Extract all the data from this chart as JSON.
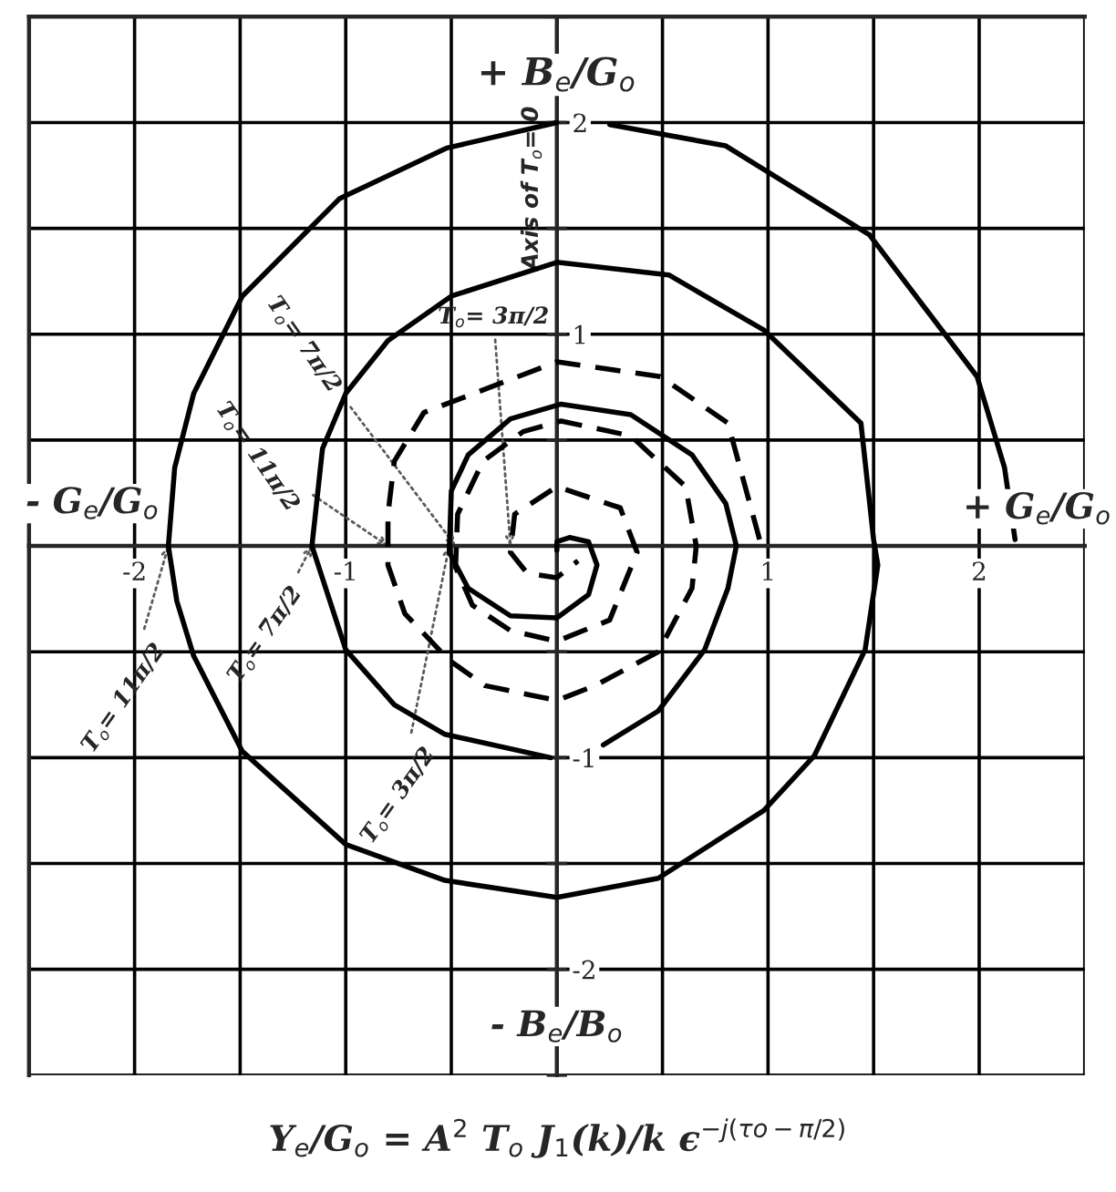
{
  "chart_data": {
    "type": "line",
    "xlim": [
      -2.5,
      2.5
    ],
    "ylim": [
      -2.5,
      2.5
    ],
    "xticks": [
      {
        "value": -2.5,
        "label": null
      },
      -2,
      {
        "value": -1.5,
        "label": null
      },
      -1,
      {
        "value": -0.5,
        "label": null
      },
      {
        "value": 0,
        "label": null
      },
      {
        "value": 0.5,
        "label": null
      },
      1,
      {
        "value": 1.5,
        "label": null
      },
      2,
      {
        "value": 2.5,
        "label": null
      }
    ],
    "yticks": [
      {
        "value": -2.5,
        "label": null
      },
      -2,
      {
        "value": -1.5,
        "label": null
      },
      -1,
      {
        "value": -0.5,
        "label": null
      },
      {
        "value": 0,
        "label": null
      },
      {
        "value": 0.5,
        "label": null
      },
      1,
      {
        "value": 1.5,
        "label": null
      },
      2,
      {
        "value": 2.5,
        "label": null
      }
    ],
    "grid": true,
    "marker": "none",
    "xlabel": "+ G$_{e}$/G$_{o}$",
    "ylabel": "+ B$_{e}$/G$_{o}$",
    "series": [
      {
        "color": "#000000",
        "line_style": "solid",
        "x": [
          2.17,
          2.12,
          1.99,
          1.48,
          0.8,
          0.25,
          null,
          0.0,
          -0.52,
          -1.03,
          -1.49,
          -1.72,
          -1.81,
          -1.84,
          -1.8,
          -1.72,
          -1.49,
          -1.0,
          -0.53,
          0.0,
          0.48,
          0.98,
          1.22,
          1.46,
          1.52,
          1.5,
          1.44,
          0.98,
          0.53,
          0.0,
          -0.5,
          -0.8,
          -1.0,
          -1.11,
          -1.16,
          -1.0,
          -0.77,
          -0.53,
          -0.03,
          null,
          0.22,
          0.48,
          0.7,
          0.81,
          0.85,
          0.8,
          0.64,
          0.35,
          0.02,
          -0.22,
          -0.42,
          -0.5,
          -0.51,
          -0.42,
          -0.22,
          0.0,
          0.15,
          0.19,
          0.15,
          0.06,
          0.0,
          0.0
        ],
        "values": [
          0.03,
          0.37,
          0.8,
          1.47,
          1.89,
          1.99,
          null,
          2.0,
          1.88,
          1.64,
          1.18,
          0.72,
          0.37,
          0.0,
          -0.26,
          -0.52,
          -0.97,
          -1.41,
          -1.58,
          -1.66,
          -1.57,
          -1.25,
          -0.99,
          -0.49,
          -0.09,
          0.03,
          0.58,
          1.02,
          1.28,
          1.34,
          1.18,
          0.97,
          0.72,
          0.46,
          0.0,
          -0.49,
          -0.75,
          -0.89,
          -1.0,
          null,
          -0.94,
          -0.78,
          -0.49,
          -0.2,
          0.0,
          0.2,
          0.43,
          0.62,
          0.67,
          0.6,
          0.43,
          0.26,
          -0.03,
          -0.2,
          -0.33,
          -0.34,
          -0.23,
          -0.09,
          0.02,
          0.04,
          0.02,
          -0.02
        ]
      },
      {
        "color": "#000000",
        "line_style": "dashed",
        "x": [
          0.96,
          0.81,
          0.49,
          0.0,
          -0.63,
          -0.77,
          -0.8,
          -0.8,
          -0.72,
          -0.51,
          -0.34,
          0.0,
          0.18,
          0.48,
          0.64,
          0.66,
          0.61,
          0.35,
          0.02,
          -0.16,
          -0.35,
          -0.47,
          -0.48,
          -0.4,
          -0.22,
          0.0,
          0.25,
          0.38,
          0.3,
          0.0,
          -0.2,
          -0.22,
          -0.14,
          0.0,
          0.1
        ],
        "values": [
          0.03,
          0.58,
          0.8,
          0.87,
          0.63,
          0.4,
          0.15,
          -0.09,
          -0.32,
          -0.54,
          -0.66,
          -0.73,
          -0.66,
          -0.5,
          -0.2,
          0.0,
          0.28,
          0.52,
          0.59,
          0.54,
          0.4,
          0.15,
          -0.1,
          -0.28,
          -0.4,
          -0.45,
          -0.35,
          -0.03,
          0.18,
          0.28,
          0.15,
          -0.03,
          -0.13,
          -0.15,
          -0.07
        ]
      }
    ],
    "annotations": [
      "Axis of T$_{o}$= 0",
      {
        "text": "T$_{o}$= 11π/2",
        "x": -1.84,
        "y": 0
      },
      {
        "text": "T$_{o}$= 7π/2",
        "x": -1.16,
        "y": 0
      },
      {
        "text": "T$_{o}$= 3π/2",
        "x": -0.51,
        "y": 0
      },
      {
        "text": "T$_{o}$= 11π/2",
        "x": -0.8,
        "y": 0
      },
      {
        "text": "T$_{o}$= 7π/2",
        "x": -0.48,
        "y": 0
      },
      {
        "text": "T$_{o}$= 3π/2",
        "x": -0.22,
        "y": 0
      },
      "- G$_{e}$/G$_{o}$",
      "- B$_{e}$/B$_{o}$",
      "Y$_{e}$/G$_{o}$ = A$^{2}$ T$_{o}$ J$_{1}$(k)/k ϵ$^{−j(τo−π/2)}$"
    ]
  }
}
